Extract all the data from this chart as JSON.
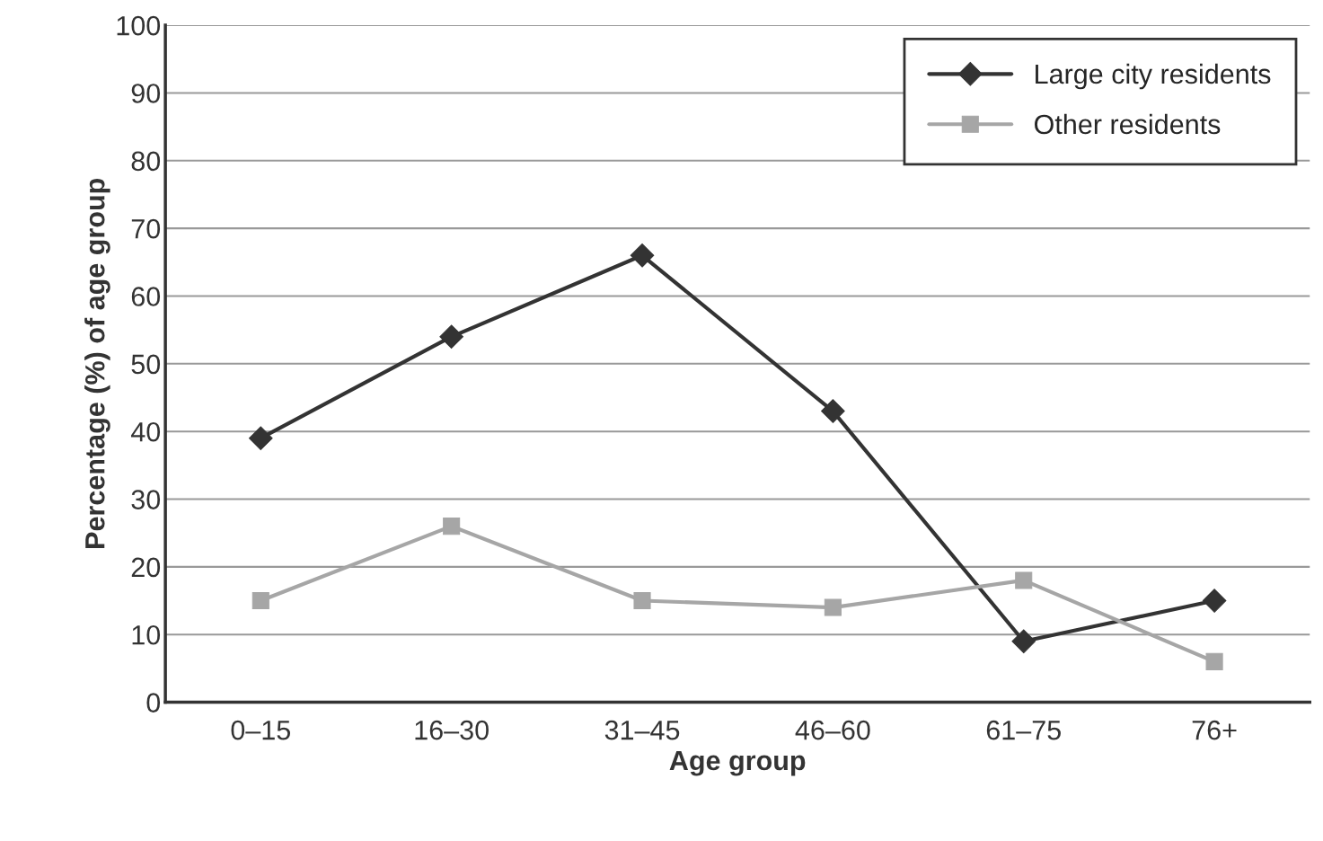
{
  "chart_data": {
    "type": "line",
    "xlabel": "Age group",
    "ylabel": "Percentage (%) of age group",
    "categories": [
      "0–15",
      "16–30",
      "31–45",
      "46–60",
      "61–75",
      "76+"
    ],
    "series": [
      {
        "name": "Large city residents",
        "color": "#333333",
        "marker": "diamond",
        "values": [
          39,
          54,
          66,
          43,
          9,
          15
        ]
      },
      {
        "name": "Other residents",
        "color": "#a6a6a6",
        "marker": "square",
        "values": [
          15,
          26,
          15,
          14,
          18,
          6
        ]
      }
    ],
    "ylim": [
      0,
      100
    ],
    "yticks": [
      0,
      10,
      20,
      30,
      40,
      50,
      60,
      70,
      80,
      90,
      100
    ],
    "grid": "y",
    "legend": "top right",
    "line_style": "solid"
  }
}
